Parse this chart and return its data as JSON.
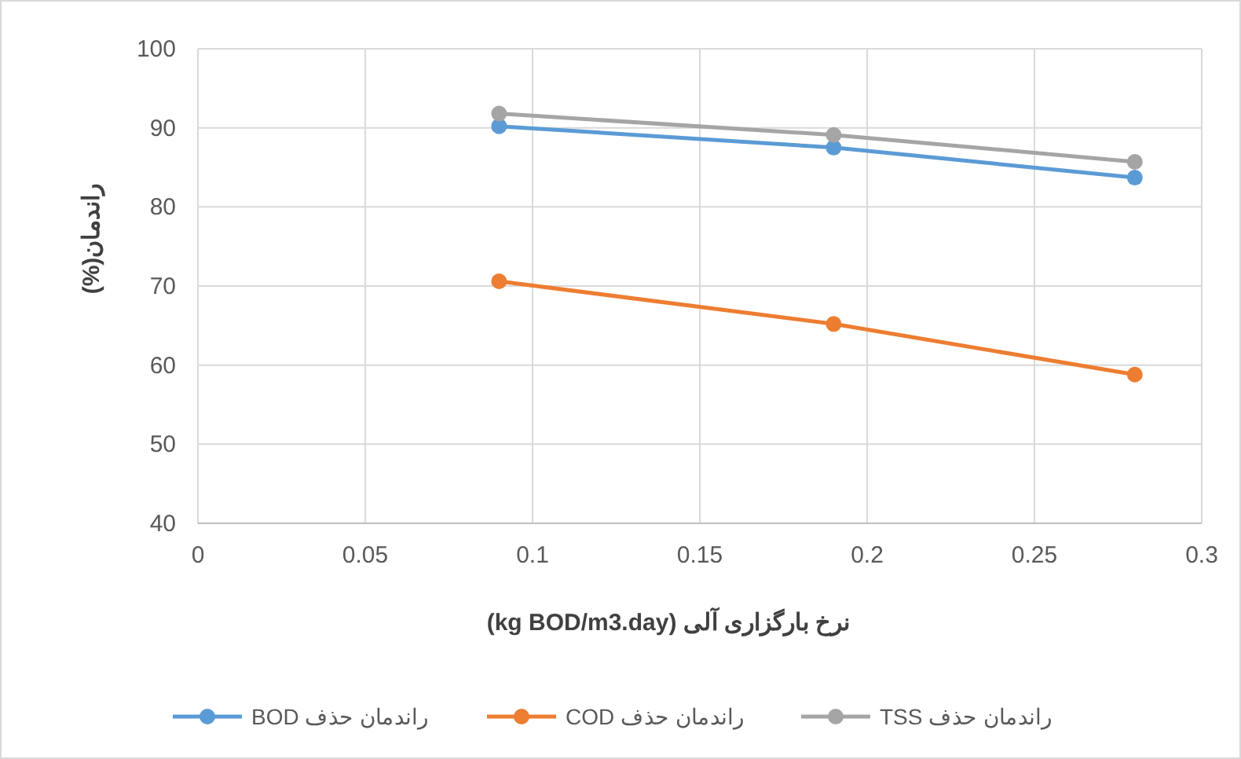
{
  "chart_data": {
    "type": "line",
    "xlabel": "نرخ بارگزاری آلی (kg BOD/m3.day)",
    "ylabel": "راندمان(%)",
    "x": [
      0.09,
      0.19,
      0.28
    ],
    "series": [
      {
        "name": "راندمان حذف BOD",
        "color": "#5b9bd5",
        "values": [
          90.2,
          87.5,
          83.7
        ]
      },
      {
        "name": "راندمان حذف COD",
        "color": "#ed7d31",
        "values": [
          70.6,
          65.2,
          58.8
        ]
      },
      {
        "name": "راندمان حذف TSS",
        "color": "#a5a5a5",
        "values": [
          91.8,
          89.1,
          85.7
        ]
      }
    ],
    "xlim": [
      0,
      0.3
    ],
    "xticks": [
      0,
      0.05,
      0.1,
      0.15,
      0.2,
      0.25,
      0.3
    ],
    "ylim": [
      40,
      100
    ],
    "yticks": [
      40,
      50,
      60,
      70,
      80,
      90,
      100
    ],
    "grid": true,
    "legend": "bottom",
    "marker": "circle",
    "line_style": "solid"
  }
}
